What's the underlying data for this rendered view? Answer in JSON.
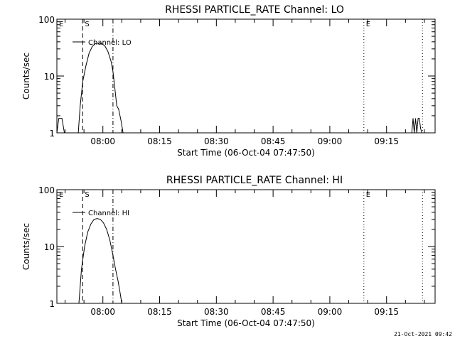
{
  "footer": {
    "timestamp": "21-Oct-2021 09:42"
  },
  "chart_data": [
    {
      "type": "line",
      "title": "RHESSI PARTICLE_RATE Channel: LO",
      "xlabel": "Start Time (06-Oct-04 07:47:50)",
      "ylabel": "Counts/sec",
      "y_scale": "log",
      "ylim": [
        1,
        100
      ],
      "xlim": [
        "07:47:50",
        "09:27:50"
      ],
      "x_ticks": [
        "08:00",
        "08:15",
        "08:30",
        "08:45",
        "09:00",
        "09:15"
      ],
      "y_ticks": [
        "1",
        "10",
        "100"
      ],
      "legend": {
        "label": "Channel: LO",
        "position": "top-left"
      },
      "markers": [
        {
          "label": "E",
          "time": "07:47:50",
          "style": "dotted"
        },
        {
          "label": "S",
          "time": "07:54:40",
          "style": "dashed"
        },
        {
          "label": "",
          "time": "08:02:40",
          "style": "dashdot"
        },
        {
          "label": "E",
          "time": "09:09:00",
          "style": "dotted"
        },
        {
          "label": "",
          "time": "09:24:30",
          "style": "dotted"
        }
      ],
      "series": [
        {
          "name": "Channel: LO",
          "segments": [
            {
              "x": [
                "07:47:50",
                "07:48:20",
                "07:49:10",
                "07:49:50"
              ],
              "y": [
                1,
                1.8,
                1.8,
                1
              ]
            },
            {
              "x": [
                "07:53:30",
                "07:54:00",
                "07:54:40",
                "07:55:30",
                "07:56:20",
                "07:57:10",
                "07:58:00",
                "07:58:50",
                "07:59:40",
                "08:00:30",
                "08:01:20",
                "08:02:10",
                "08:02:40",
                "08:03:10",
                "08:03:40",
                "08:04:10",
                "08:04:50",
                "08:05:20"
              ],
              "y": [
                1,
                3,
                8,
                15,
                25,
                33,
                37,
                38,
                37,
                34,
                27,
                18,
                12,
                6,
                3,
                2.6,
                1.6,
                1
              ]
            },
            {
              "x": [
                "09:21:40",
                "09:22:00",
                "09:22:20",
                "09:22:40",
                "09:23:00",
                "09:23:20",
                "09:23:40",
                "09:24:00",
                "09:24:20"
              ],
              "y": [
                1,
                1.8,
                1,
                1.8,
                1,
                1.8,
                1.8,
                1.2,
                1
              ]
            }
          ]
        }
      ]
    },
    {
      "type": "line",
      "title": "RHESSI PARTICLE_RATE Channel: HI",
      "xlabel": "Start Time (06-Oct-04 07:47:50)",
      "ylabel": "Counts/sec",
      "y_scale": "log",
      "ylim": [
        1,
        100
      ],
      "xlim": [
        "07:47:50",
        "09:27:50"
      ],
      "x_ticks": [
        "08:00",
        "08:15",
        "08:30",
        "08:45",
        "09:00",
        "09:15"
      ],
      "y_ticks": [
        "1",
        "10",
        "100"
      ],
      "legend": {
        "label": "Channel: HI",
        "position": "top-left"
      },
      "markers": [
        {
          "label": "E",
          "time": "07:47:50",
          "style": "dotted"
        },
        {
          "label": "S",
          "time": "07:54:40",
          "style": "dashed"
        },
        {
          "label": "",
          "time": "08:02:40",
          "style": "dashdot"
        },
        {
          "label": "E",
          "time": "09:09:00",
          "style": "dotted"
        },
        {
          "label": "",
          "time": "09:24:30",
          "style": "dotted"
        }
      ],
      "series": [
        {
          "name": "Channel: HI",
          "segments": [
            {
              "x": [
                "07:53:40",
                "07:54:20",
                "07:55:10",
                "07:56:00",
                "07:56:50",
                "07:57:40",
                "07:58:30",
                "07:59:20",
                "08:00:10",
                "08:01:00",
                "08:01:50",
                "08:02:40",
                "08:03:20",
                "08:04:00",
                "08:04:30",
                "08:05:00"
              ],
              "y": [
                1,
                4,
                10,
                18,
                25,
                30,
                31,
                30,
                26,
                20,
                13,
                7,
                4,
                2.5,
                1.6,
                1
              ]
            }
          ]
        }
      ]
    }
  ]
}
